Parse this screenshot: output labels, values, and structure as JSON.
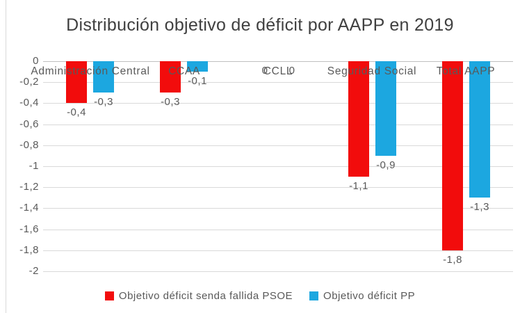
{
  "title": "Distribución objetivo de déficit por AAPP en 2019",
  "chart_data": {
    "type": "bar",
    "orientation": "vertical",
    "categories": [
      "Administración Central",
      "CCAA",
      "CCLL",
      "Seguridad Social",
      "Total AAPP"
    ],
    "series": [
      {
        "name": "Objetivo déficit senda fallida PSOE",
        "color": "#f20c0c",
        "values": [
          -0.4,
          -0.3,
          0,
          -1.1,
          -1.8
        ],
        "data_labels": [
          "-0,4",
          "-0,3",
          "0",
          "-1,1",
          "-1,8"
        ]
      },
      {
        "name": "Objetivo déficit PP",
        "color": "#1ca7e0",
        "values": [
          -0.3,
          -0.1,
          0,
          -0.9,
          -1.3
        ],
        "data_labels": [
          "-0,3",
          "-0,1",
          "0",
          "-0,9",
          "-1,3"
        ]
      }
    ],
    "y_axis": {
      "min": -2,
      "max": 0,
      "step": 0.2,
      "tick_labels": [
        "0",
        "-0,2",
        "-0,4",
        "-0,6",
        "-0,8",
        "-1",
        "-1,2",
        "-1,4",
        "-1,6",
        "-1,8",
        "-2"
      ]
    },
    "grid": true,
    "legend_position": "bottom",
    "colors": {
      "gridline": "#d9d9d9",
      "zero_line": "#bfbfbf",
      "axis_text": "#595959",
      "title_text": "#404040",
      "background": "#ffffff",
      "frame_line": "#d9d9d9"
    }
  }
}
